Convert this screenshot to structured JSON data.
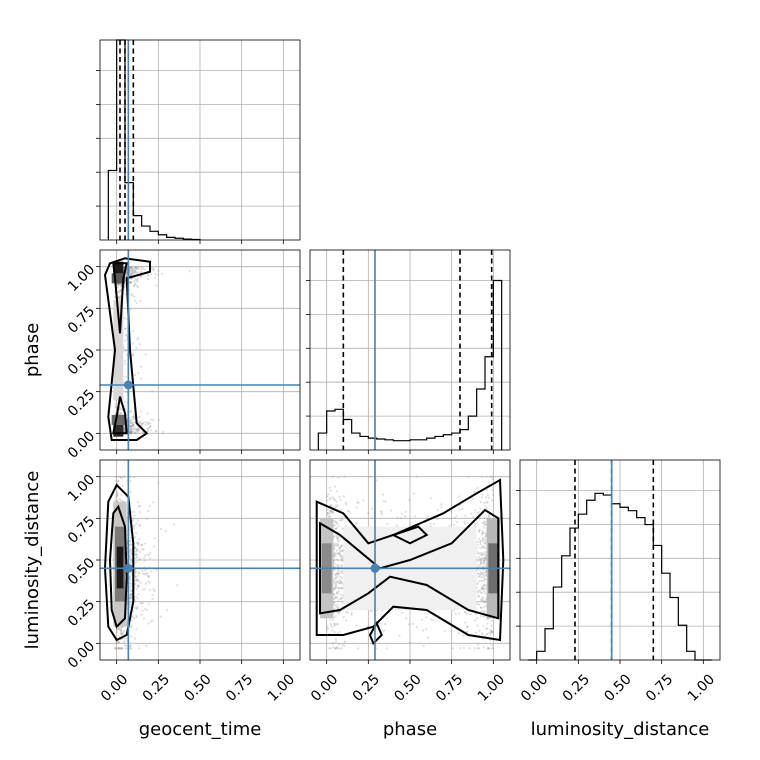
{
  "chart_data": {
    "type": "corner",
    "parameters": [
      "geocent_time",
      "phase",
      "luminosity_distance"
    ],
    "tick_labels": [
      "0.00",
      "0.25",
      "0.50",
      "0.75",
      "1.00"
    ],
    "truth": {
      "geocent_time": 0.07,
      "phase": 0.29,
      "luminosity_distance": 0.45
    },
    "truth_color": "#4682b4",
    "grid": true,
    "marginals": {
      "geocent_time": {
        "bin_edges": [
          -0.05,
          0.0,
          0.05,
          0.1,
          0.15,
          0.2,
          0.25,
          0.3,
          0.35,
          0.4,
          0.45,
          0.5
        ],
        "heights": [
          0.4,
          1.15,
          0.33,
          0.14,
          0.08,
          0.05,
          0.03,
          0.015,
          0.01,
          0.005,
          0.003
        ],
        "quantiles": [
          0.02,
          0.05,
          0.1
        ]
      },
      "phase": {
        "bin_edges": [
          -0.05,
          0.0,
          0.05,
          0.1,
          0.15,
          0.2,
          0.25,
          0.3,
          0.35,
          0.4,
          0.45,
          0.5,
          0.55,
          0.6,
          0.65,
          0.7,
          0.75,
          0.8,
          0.85,
          0.9,
          0.95,
          1.0,
          1.05
        ],
        "heights": [
          0.1,
          0.23,
          0.24,
          0.18,
          0.1,
          0.08,
          0.07,
          0.065,
          0.06,
          0.055,
          0.055,
          0.06,
          0.06,
          0.07,
          0.08,
          0.09,
          0.1,
          0.12,
          0.2,
          0.36,
          0.55,
          1.0
        ],
        "quantiles": [
          0.1,
          0.8,
          0.99
        ]
      },
      "luminosity_distance": {
        "bin_edges": [
          -0.05,
          0.0,
          0.05,
          0.1,
          0.15,
          0.2,
          0.25,
          0.3,
          0.35,
          0.4,
          0.45,
          0.5,
          0.55,
          0.6,
          0.65,
          0.7,
          0.75,
          0.8,
          0.85,
          0.9,
          0.95,
          1.0,
          1.05
        ],
        "heights": [
          0.0,
          0.05,
          0.18,
          0.42,
          0.6,
          0.76,
          0.84,
          0.92,
          0.96,
          0.95,
          0.9,
          0.88,
          0.86,
          0.82,
          0.78,
          0.66,
          0.5,
          0.36,
          0.2,
          0.05,
          0.0,
          0.0
        ],
        "quantiles": [
          0.23,
          0.45,
          0.7
        ]
      }
    },
    "joint": {
      "phase_vs_geocent_time": {
        "x": "geocent_time",
        "y": "phase",
        "density_peaks": [
          [
            0.02,
            1.0
          ],
          [
            0.02,
            0.02
          ]
        ],
        "contour_levels": [
          "39%",
          "86%"
        ]
      },
      "luminosity_distance_vs_geocent_time": {
        "x": "geocent_time",
        "y": "luminosity_distance",
        "density_peaks": [
          [
            0.03,
            0.45
          ]
        ],
        "contour_levels": [
          "39%",
          "86%"
        ]
      },
      "luminosity_distance_vs_phase": {
        "x": "phase",
        "y": "luminosity_distance",
        "density_peaks": [
          [
            0.0,
            0.45
          ],
          [
            1.0,
            0.45
          ]
        ],
        "contour_levels": [
          "39%",
          "86%"
        ]
      }
    }
  }
}
